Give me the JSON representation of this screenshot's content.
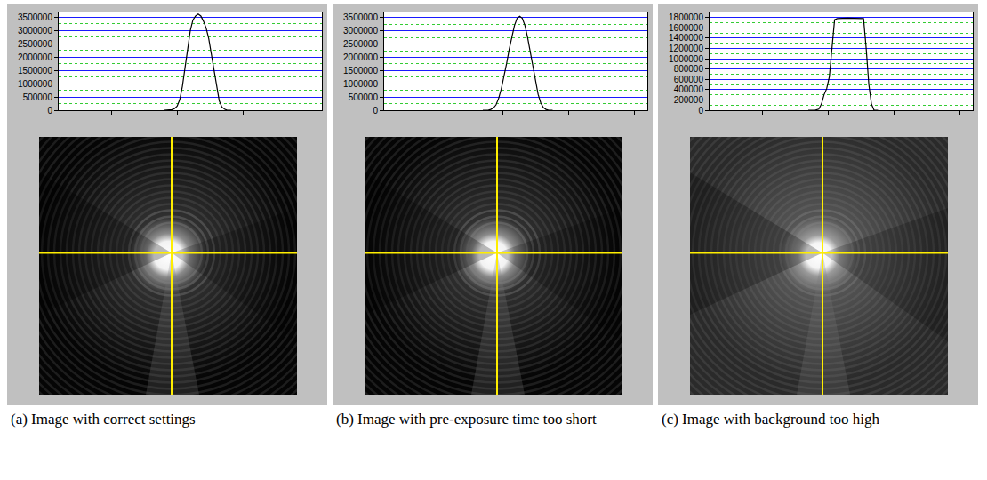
{
  "chart_data": [
    {
      "type": "line",
      "caption": "(a) Image with correct settings",
      "color": "#000000",
      "x": [
        160,
        168,
        172,
        176,
        180,
        184,
        188,
        192,
        196,
        200,
        204,
        208,
        212,
        216,
        220,
        224,
        228,
        232,
        236,
        240,
        244,
        248,
        252,
        256,
        262
      ],
      "values": [
        0,
        0,
        20000,
        60000,
        150000,
        400000,
        900000,
        1600000,
        2400000,
        3000000,
        3400000,
        3550000,
        3620000,
        3550000,
        3350000,
        3100000,
        2700000,
        2100000,
        1400000,
        800000,
        350000,
        120000,
        40000,
        0,
        0
      ],
      "xlim": [
        0,
        400
      ],
      "xticks": [
        80,
        180,
        280,
        380
      ],
      "ylim": [
        0,
        3680000
      ],
      "yticks": [
        0,
        500000,
        1000000,
        1500000,
        2000000,
        2500000,
        3000000,
        3500000
      ],
      "grid": true,
      "tick_labels": "y"
    },
    {
      "type": "line",
      "caption": "(b) Image with pre-exposure time too short",
      "color": "#000000",
      "x": [
        150,
        158,
        162,
        166,
        170,
        174,
        178,
        182,
        186,
        190,
        194,
        198,
        202,
        206,
        210,
        214,
        218,
        222,
        226,
        230,
        234,
        238,
        242,
        246,
        250,
        256
      ],
      "values": [
        0,
        0,
        30000,
        80000,
        200000,
        450000,
        800000,
        1250000,
        1750000,
        2300000,
        2800000,
        3200000,
        3480000,
        3560000,
        3480000,
        3200000,
        2750000,
        2200000,
        1600000,
        1050000,
        600000,
        280000,
        100000,
        30000,
        0,
        0
      ],
      "xlim": [
        0,
        400
      ],
      "xticks": [
        80,
        180,
        280,
        380
      ],
      "ylim": [
        0,
        3700000
      ],
      "yticks": [
        0,
        500000,
        1000000,
        1500000,
        2000000,
        2500000,
        3000000,
        3500000
      ],
      "grid": true,
      "tick_labels": "y"
    },
    {
      "type": "line",
      "caption": "(c) Image with background too high",
      "color": "#000000",
      "x": [
        150,
        160,
        166,
        170,
        174,
        178,
        182,
        186,
        190,
        194,
        200,
        210,
        220,
        230,
        234,
        238,
        242,
        246,
        250,
        256
      ],
      "values": [
        0,
        0,
        20000,
        120000,
        300000,
        420000,
        650000,
        1200000,
        1760000,
        1780000,
        1785000,
        1790000,
        1785000,
        1790000,
        1780000,
        1200000,
        500000,
        120000,
        0,
        0
      ],
      "xlim": [
        0,
        400
      ],
      "xticks": [
        80,
        180,
        280,
        380
      ],
      "ylim": [
        0,
        1900000
      ],
      "yticks": [
        0,
        200000,
        400000,
        600000,
        800000,
        1000000,
        1200000,
        1400000,
        1600000,
        1800000
      ],
      "grid": true,
      "tick_labels": "y"
    }
  ]
}
